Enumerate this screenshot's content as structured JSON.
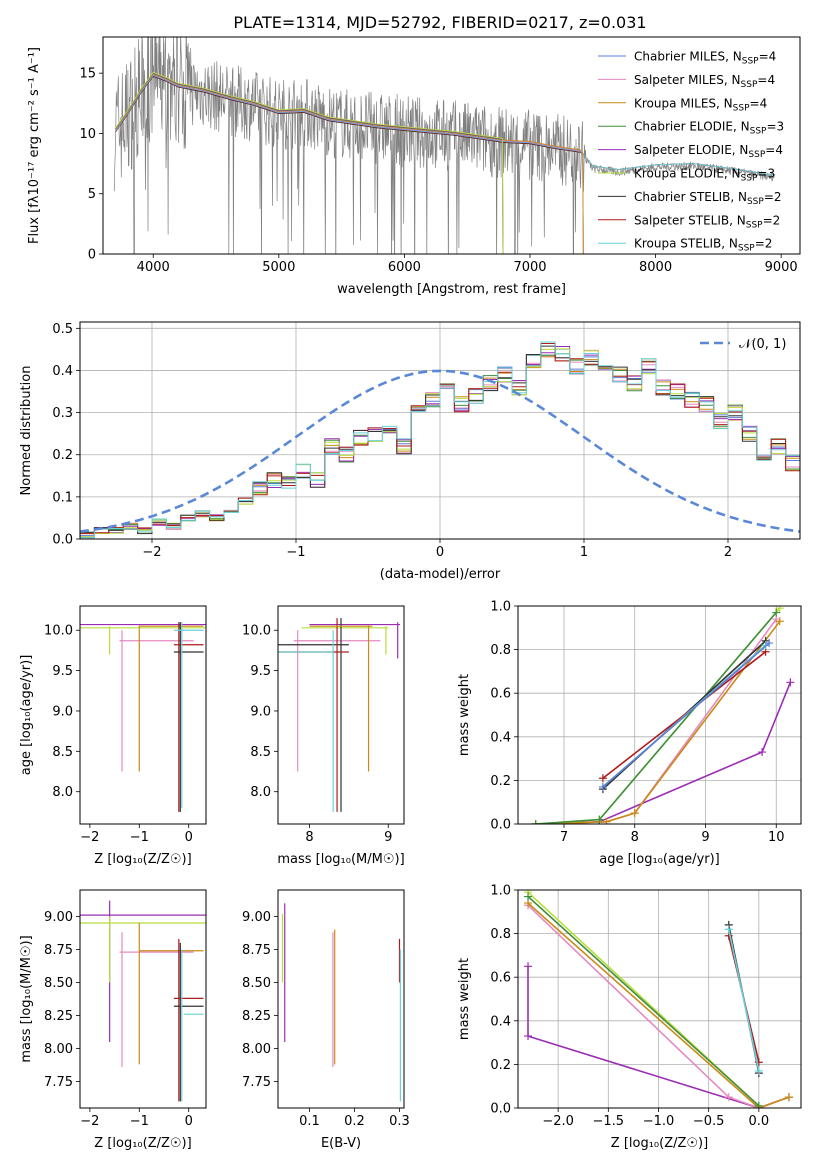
{
  "figure": {
    "title": "PLATE=1314, MJD=52792, FIBERID=0217, z=0.031"
  },
  "series_styles": [
    {
      "name": "Chabrier MILES",
      "color": "#5b7fd6"
    },
    {
      "name": "Salpeter MILES",
      "color": "#e58ac0"
    },
    {
      "name": "Kroupa MILES",
      "color": "#c98b16"
    },
    {
      "name": "Chabrier ELODIE",
      "color": "#3f8f3f"
    },
    {
      "name": "Salpeter ELODIE",
      "color": "#9b2db5"
    },
    {
      "name": "Kroupa ELODIE",
      "color": "#b8de3a"
    },
    {
      "name": "Chabrier STELIB",
      "color": "#333333"
    },
    {
      "name": "Salpeter STELIB",
      "color": "#b01c1c"
    },
    {
      "name": "Kroupa STELIB",
      "color": "#66d2d9"
    }
  ],
  "chart_data": [
    {
      "type": "line",
      "panel": "spectrum",
      "xlabel": "wavelength [Angstrom, rest frame]",
      "ylabel": "Flux [fλ10⁻¹⁷ erg cm⁻² s⁻¹ A⁻¹]",
      "xlim": [
        3600,
        9150
      ],
      "ylim": [
        0,
        18
      ],
      "xticks": [
        "4000",
        "5000",
        "6000",
        "7000",
        "8000",
        "9000"
      ],
      "yticks": [
        "0",
        "5",
        "10",
        "15"
      ],
      "legend_position": "top-right",
      "legend": [
        {
          "label": "Chabrier MILES, N",
          "sub": "SSP",
          "tail": "=4"
        },
        {
          "label": "Salpeter MILES, N",
          "sub": "SSP",
          "tail": "=4"
        },
        {
          "label": "Kroupa MILES, N",
          "sub": "SSP",
          "tail": "=4"
        },
        {
          "label": "Chabrier ELODIE, N",
          "sub": "SSP",
          "tail": "=3"
        },
        {
          "label": "Salpeter ELODIE, N",
          "sub": "SSP",
          "tail": "=4"
        },
        {
          "label": "Kroupa ELODIE, N",
          "sub": "SSP",
          "tail": "=3"
        },
        {
          "label": "Chabrier STELIB, N",
          "sub": "SSP",
          "tail": "=2"
        },
        {
          "label": "Salpeter STELIB, N",
          "sub": "SSP",
          "tail": "=2"
        },
        {
          "label": "Kroupa STELIB, N",
          "sub": "SSP",
          "tail": "=2"
        }
      ],
      "data_color": "#808080",
      "data_envelope": {
        "x": [
          3700,
          3800,
          3900,
          4000,
          4100,
          4200,
          4400,
          4600,
          4800,
          5000,
          5200,
          5400,
          5600,
          5800,
          6000,
          6200,
          6400,
          6600,
          6800,
          7000,
          7200,
          7400,
          7500,
          7700,
          8000,
          8300,
          8600,
          8900
        ],
        "y": [
          10.2,
          11.5,
          13.2,
          14.6,
          14.2,
          13.8,
          13.4,
          12.8,
          12.3,
          11.6,
          11.8,
          11.0,
          10.7,
          10.4,
          10.2,
          10.0,
          9.8,
          9.5,
          9.2,
          9.1,
          8.7,
          8.4,
          7.1,
          6.8,
          7.2,
          7.3,
          6.9,
          6.4
        ]
      },
      "model_curves": {
        "x": [
          3700,
          3800,
          3900,
          4000,
          4100,
          4200,
          4400,
          4600,
          4800,
          5000,
          5200,
          5400,
          5600,
          5800,
          6000,
          6200,
          6400,
          6600,
          6800,
          7000,
          7200,
          7400
        ],
        "y": [
          10.3,
          11.8,
          13.5,
          14.9,
          14.5,
          14.0,
          13.6,
          13.0,
          12.5,
          11.8,
          11.9,
          11.2,
          10.9,
          10.6,
          10.4,
          10.2,
          10.0,
          9.7,
          9.4,
          9.3,
          8.9,
          8.6
        ],
        "end_wavelength": {
          "STELIB": 8950,
          "MILES": 7420,
          "ELODIE": 6780
        }
      }
    },
    {
      "type": "step",
      "panel": "residuals",
      "xlabel": "(data-model)/error",
      "ylabel": "Normed distribution",
      "xlim": [
        -2.5,
        2.5
      ],
      "ylim": [
        0,
        0.515
      ],
      "xticks": [
        "−2",
        "−1",
        "0",
        "1",
        "2"
      ],
      "yticks": [
        "0.0",
        "0.1",
        "0.2",
        "0.3",
        "0.4",
        "0.5"
      ],
      "grid": true,
      "legend_position": "top-right",
      "reference_label": "𝒩(0, 1)",
      "reference_color": "#5b88d6",
      "bin_width": 0.1,
      "bin_start": -2.5,
      "base_heights": [
        0.01,
        0.02,
        0.02,
        0.03,
        0.02,
        0.04,
        0.03,
        0.05,
        0.06,
        0.05,
        0.07,
        0.09,
        0.12,
        0.14,
        0.13,
        0.16,
        0.14,
        0.22,
        0.2,
        0.24,
        0.25,
        0.27,
        0.22,
        0.31,
        0.33,
        0.35,
        0.32,
        0.34,
        0.37,
        0.39,
        0.36,
        0.42,
        0.45,
        0.44,
        0.41,
        0.43,
        0.4,
        0.39,
        0.37,
        0.41,
        0.36,
        0.35,
        0.33,
        0.32,
        0.28,
        0.3,
        0.25,
        0.2,
        0.22,
        0.18,
        0.17,
        0.16,
        0.14,
        0.14,
        0.11,
        0.09,
        0.09,
        0.07,
        0.06,
        0.05,
        0.04,
        0.04,
        0.03,
        0.03,
        0.02,
        0.03,
        0.02,
        0.02,
        0.02,
        0.01
      ]
    },
    {
      "type": "scatter",
      "panel": "age-vs-Z",
      "xlabel": "Z [log₁₀(Z/Z☉)]",
      "ylabel": "age  [log₁₀(age/yr)]",
      "xlim": [
        -2.2,
        0.35
      ],
      "ylim": [
        7.6,
        10.3
      ],
      "xticks": [
        "−2",
        "−1",
        "0"
      ],
      "yticks": [
        "8.0",
        "8.5",
        "9.0",
        "9.5",
        "10.0"
      ],
      "bars": [
        {
          "series": 4,
          "x0": -2.2,
          "x1": 0.35,
          "y": 10.07,
          "ylo": 10.07,
          "yhi": 10.07
        },
        {
          "series": 5,
          "x0": -2.2,
          "x1": 0.35,
          "y": 10.03,
          "ylo": 9.7,
          "yhi": 10.05
        },
        {
          "series": 1,
          "x0": -1.4,
          "x1": 0.1,
          "y": 9.87,
          "ylo": 8.25,
          "yhi": 10.0
        },
        {
          "series": 2,
          "x0": -1.0,
          "x1": 0.3,
          "y": 10.05,
          "ylo": 8.25,
          "yhi": 10.06
        },
        {
          "series": 7,
          "x0": -0.3,
          "x1": 0.3,
          "y": 9.82,
          "ylo": 7.75,
          "yhi": 10.1
        },
        {
          "series": 6,
          "x0": -0.3,
          "x1": 0.3,
          "y": 9.73,
          "ylo": 7.75,
          "yhi": 10.1
        },
        {
          "series": 8,
          "x0": -0.3,
          "x1": 0.3,
          "y": 10.0,
          "ylo": 7.8,
          "yhi": 10.1
        }
      ]
    },
    {
      "type": "scatter",
      "panel": "age-vs-mass",
      "xlabel": "mass [log₁₀(M/M☉)]",
      "xlim": [
        7.6,
        9.2
      ],
      "ylim": [
        7.6,
        10.3
      ],
      "xticks": [
        "8",
        "9"
      ],
      "yticks": [
        "8.0",
        "8.5",
        "9.0",
        "9.5",
        "10.0"
      ],
      "bars": [
        {
          "series": 4,
          "x0": 8.0,
          "x1": 9.15,
          "y": 10.07,
          "ylo": 9.65,
          "yhi": 10.1
        },
        {
          "series": 5,
          "x0": 7.9,
          "x1": 9.0,
          "y": 10.03,
          "ylo": 9.7,
          "yhi": 10.05
        },
        {
          "series": 1,
          "x0": 7.8,
          "x1": 8.9,
          "y": 9.87,
          "ylo": 8.25,
          "yhi": 10.0
        },
        {
          "series": 6,
          "x0": 7.6,
          "x1": 8.5,
          "y": 9.82,
          "ylo": 7.75,
          "yhi": 10.15
        },
        {
          "series": 7,
          "x0": 7.6,
          "x1": 8.5,
          "y": 9.73,
          "ylo": 7.75,
          "yhi": 10.15
        },
        {
          "series": 8,
          "x0": 7.6,
          "x1": 8.3,
          "y": 9.73,
          "ylo": 7.75,
          "yhi": 10.0
        },
        {
          "series": 2,
          "x0": 8.0,
          "x1": 8.8,
          "y": 10.05,
          "ylo": 8.25,
          "yhi": 10.06
        }
      ]
    },
    {
      "type": "line",
      "panel": "massweight-vs-age",
      "xlabel": "age  [log₁₀(age/yr)]",
      "ylabel": "mass weight",
      "xlim": [
        6.35,
        10.35
      ],
      "ylim": [
        0,
        1
      ],
      "xticks": [
        "7",
        "8",
        "9",
        "10"
      ],
      "yticks": [
        "0.0",
        "0.2",
        "0.4",
        "0.6",
        "0.8",
        "1.0"
      ],
      "grid": true,
      "series": [
        {
          "series": 4,
          "x": [
            6.6,
            7.5,
            9.8,
            10.2
          ],
          "y": [
            0.0,
            0.01,
            0.33,
            0.65
          ]
        },
        {
          "series": 1,
          "x": [
            6.6,
            7.6,
            8.0,
            10.0
          ],
          "y": [
            0.0,
            0.01,
            0.05,
            0.94
          ]
        },
        {
          "series": 2,
          "x": [
            6.6,
            7.6,
            8.0,
            10.05
          ],
          "y": [
            0.0,
            0.01,
            0.05,
            0.93
          ]
        },
        {
          "series": 5,
          "x": [
            6.6,
            7.5,
            10.05
          ],
          "y": [
            0.0,
            0.02,
            0.99
          ]
        },
        {
          "series": 3,
          "x": [
            6.6,
            7.5,
            10.0
          ],
          "y": [
            0.0,
            0.02,
            0.97
          ]
        },
        {
          "series": 6,
          "x": [
            7.55,
            9.85
          ],
          "y": [
            0.16,
            0.84
          ]
        },
        {
          "series": 7,
          "x": [
            7.55,
            9.85
          ],
          "y": [
            0.21,
            0.79
          ]
        },
        {
          "series": 8,
          "x": [
            7.55,
            9.85
          ],
          "y": [
            0.17,
            0.82
          ]
        },
        {
          "series": 0,
          "x": [
            7.55,
            9.9
          ],
          "y": [
            0.17,
            0.83
          ]
        }
      ]
    },
    {
      "type": "scatter",
      "panel": "mass-vs-Z",
      "xlabel": "Z [log₁₀(Z/Z☉)]",
      "ylabel": "mass [log₁₀(M/M☉)]",
      "xlim": [
        -2.2,
        0.35
      ],
      "ylim": [
        7.55,
        9.2
      ],
      "xticks": [
        "−2",
        "−1",
        "0"
      ],
      "yticks": [
        "7.75",
        "8.00",
        "8.25",
        "8.50",
        "8.75",
        "9.00",
        "9.25"
      ],
      "bars": [
        {
          "series": 4,
          "x0": -2.2,
          "x1": 0.35,
          "y": 9.01,
          "ylo": 8.05,
          "yhi": 9.12
        },
        {
          "series": 5,
          "x0": -2.2,
          "x1": 0.35,
          "y": 8.95,
          "ylo": 8.5,
          "yhi": 9.0
        },
        {
          "series": 1,
          "x0": -1.4,
          "x1": 0.1,
          "y": 8.73,
          "ylo": 7.86,
          "yhi": 8.88
        },
        {
          "series": 2,
          "x0": -1.0,
          "x1": 0.3,
          "y": 8.74,
          "ylo": 7.88,
          "yhi": 8.95
        },
        {
          "series": 7,
          "x0": -0.3,
          "x1": 0.3,
          "y": 8.38,
          "ylo": 7.6,
          "yhi": 8.83
        },
        {
          "series": 6,
          "x0": -0.3,
          "x1": 0.3,
          "y": 8.32,
          "ylo": 7.6,
          "yhi": 8.8
        },
        {
          "series": 8,
          "x0": -0.1,
          "x1": 0.3,
          "y": 8.26,
          "ylo": 7.6,
          "yhi": 8.75
        }
      ]
    },
    {
      "type": "scatter",
      "panel": "mass-vs-EBV",
      "xlabel": "E(B-V)",
      "xlim": [
        0.03,
        0.31
      ],
      "ylim": [
        7.55,
        9.2
      ],
      "xticks": [
        "0.1",
        "0.2",
        "0.3"
      ],
      "yticks": [
        "7.75",
        "8.00",
        "8.25",
        "8.50",
        "8.75",
        "9.00",
        "9.25"
      ],
      "bars": [
        {
          "series": 5,
          "x": 0.04,
          "ylo": 8.5,
          "yhi": 9.02
        },
        {
          "series": 4,
          "x": 0.045,
          "ylo": 8.05,
          "yhi": 9.1
        },
        {
          "series": 1,
          "x": 0.152,
          "ylo": 7.86,
          "yhi": 8.88
        },
        {
          "series": 2,
          "x": 0.156,
          "ylo": 7.88,
          "yhi": 8.9
        },
        {
          "series": 7,
          "x": 0.3,
          "ylo": 8.5,
          "yhi": 8.83
        },
        {
          "series": 8,
          "x": 0.302,
          "ylo": 7.6,
          "yhi": 8.75
        }
      ]
    },
    {
      "type": "line",
      "panel": "massweight-vs-Z",
      "xlabel": "Z [log₁₀(Z/Z☉)]",
      "ylabel": "mass weight",
      "xlim": [
        -2.4,
        0.42
      ],
      "ylim": [
        0,
        1
      ],
      "xticks": [
        "−2.0",
        "−1.5",
        "−1.0",
        "−0.5",
        "0.0"
      ],
      "yticks": [
        "0.0",
        "0.2",
        "0.4",
        "0.6",
        "0.8",
        "1.0"
      ],
      "grid": true,
      "series": [
        {
          "series": 4,
          "x": [
            -2.3,
            -2.3,
            0.0,
            0.3
          ],
          "y": [
            0.65,
            0.33,
            0.0,
            0.05
          ]
        },
        {
          "series": 1,
          "x": [
            -2.3,
            -0.3,
            0.0,
            0.3
          ],
          "y": [
            0.93,
            0.05,
            0.0,
            0.05
          ]
        },
        {
          "series": 2,
          "x": [
            -2.3,
            0.0,
            0.3
          ],
          "y": [
            0.94,
            0.0,
            0.05
          ]
        },
        {
          "series": 5,
          "x": [
            -2.3,
            0.0
          ],
          "y": [
            0.99,
            0.01
          ]
        },
        {
          "series": 3,
          "x": [
            -2.3,
            0.0
          ],
          "y": [
            0.97,
            0.01
          ]
        },
        {
          "series": 6,
          "x": [
            -0.3,
            0.0
          ],
          "y": [
            0.84,
            0.16
          ]
        },
        {
          "series": 7,
          "x": [
            -0.3,
            0.0
          ],
          "y": [
            0.79,
            0.21
          ]
        },
        {
          "series": 8,
          "x": [
            -0.3,
            0.0
          ],
          "y": [
            0.82,
            0.17
          ]
        }
      ]
    }
  ]
}
